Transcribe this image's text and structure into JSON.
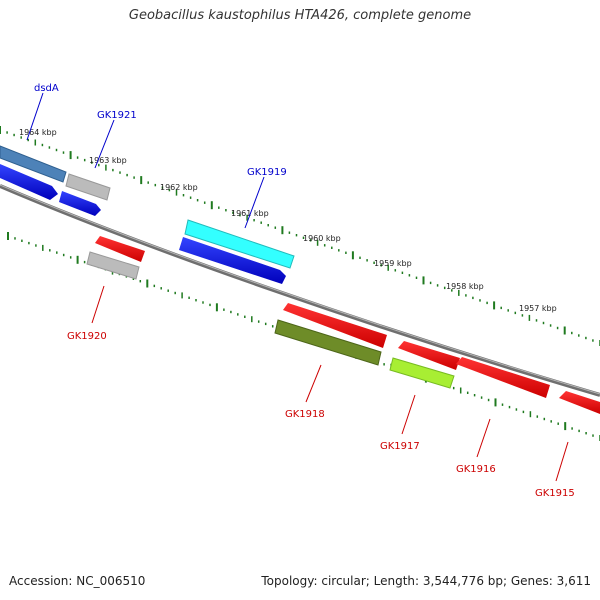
{
  "title": "Geobacillus kaustophilus HTA426, complete genome",
  "footer": {
    "accession": "Accession: NC_006510",
    "summary": "Topology: circular; Length: 3,544,776 bp; Genes: 3,611"
  },
  "kbp_ticks": [
    "1964 kbp",
    "1963 kbp",
    "1962 kbp",
    "1961 kbp",
    "1960 kbp",
    "1959 kbp",
    "1958 kbp",
    "1957 kbp"
  ],
  "gene_labels": {
    "dsdA": "dsdA",
    "GK1921": "GK1921",
    "GK1919": "GK1919",
    "GK1920": "GK1920",
    "GK1918": "GK1918",
    "GK1917": "GK1917",
    "GK1916": "GK1916",
    "GK1915": "GK1915"
  },
  "colors": {
    "plus_label": "#0000cc",
    "minus_label": "#cc0000",
    "backbone": "#7a7a7a",
    "tick": "#1f7a1f"
  }
}
